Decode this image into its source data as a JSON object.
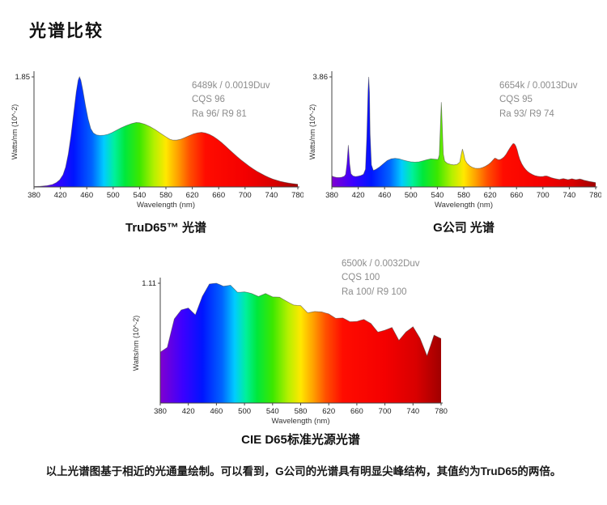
{
  "page": {
    "title": "光谱比较",
    "footnote": "以上光谱图基于相近的光通量绘制。可以看到，G公司的光谱具有明显尖峰结构，其值约为TruD65的两倍。"
  },
  "colors": {
    "annotation_text": "#8c8c8c",
    "axis": "#444444",
    "curve_outline": "#3c3c3c"
  },
  "spectrum_gradient_stops": [
    {
      "nm": 380,
      "color": "#8000d0"
    },
    {
      "nm": 412,
      "color": "#3c00ff"
    },
    {
      "nm": 440,
      "color": "#0014ff"
    },
    {
      "nm": 468,
      "color": "#0064ff"
    },
    {
      "nm": 486,
      "color": "#00ccff"
    },
    {
      "nm": 502,
      "color": "#00f09b"
    },
    {
      "nm": 518,
      "color": "#00e83c"
    },
    {
      "nm": 540,
      "color": "#3ce800"
    },
    {
      "nm": 562,
      "color": "#b4f000"
    },
    {
      "nm": 580,
      "color": "#ffe800"
    },
    {
      "nm": 598,
      "color": "#ffa000"
    },
    {
      "nm": 616,
      "color": "#ff5000"
    },
    {
      "nm": 640,
      "color": "#ff0c00"
    },
    {
      "nm": 700,
      "color": "#f40000"
    },
    {
      "nm": 745,
      "color": "#d80000"
    },
    {
      "nm": 780,
      "color": "#a00000"
    }
  ],
  "chart_data": [
    {
      "type": "area",
      "title": "TruD65™ 光谱",
      "xlabel": "Wavelength (nm)",
      "ylabel": "Watts/nm (10^-2)",
      "ymax_label": "1.85",
      "ymax_value": 1.85,
      "xlim": [
        380,
        780
      ],
      "xticks": [
        380,
        420,
        460,
        500,
        540,
        580,
        620,
        660,
        700,
        740,
        780
      ],
      "annotation": [
        "6489k / 0.0019Duv",
        "CQS 96",
        "Ra 96/ R9 81"
      ],
      "points": [
        [
          380,
          0.004
        ],
        [
          390,
          0.006
        ],
        [
          400,
          0.012
        ],
        [
          408,
          0.022
        ],
        [
          414,
          0.04
        ],
        [
          419,
          0.065
        ],
        [
          424,
          0.11
        ],
        [
          428,
          0.18
        ],
        [
          432,
          0.3
        ],
        [
          436,
          0.46
        ],
        [
          440,
          0.66
        ],
        [
          444,
          0.86
        ],
        [
          447,
          0.97
        ],
        [
          449,
          1.0
        ],
        [
          451,
          0.97
        ],
        [
          454,
          0.88
        ],
        [
          458,
          0.74
        ],
        [
          462,
          0.62
        ],
        [
          466,
          0.53
        ],
        [
          470,
          0.49
        ],
        [
          475,
          0.472
        ],
        [
          480,
          0.468
        ],
        [
          486,
          0.47
        ],
        [
          492,
          0.478
        ],
        [
          498,
          0.493
        ],
        [
          505,
          0.515
        ],
        [
          512,
          0.537
        ],
        [
          520,
          0.558
        ],
        [
          528,
          0.575
        ],
        [
          535,
          0.585
        ],
        [
          540,
          0.583
        ],
        [
          548,
          0.57
        ],
        [
          556,
          0.548
        ],
        [
          564,
          0.52
        ],
        [
          572,
          0.487
        ],
        [
          580,
          0.455
        ],
        [
          586,
          0.433
        ],
        [
          591,
          0.425
        ],
        [
          596,
          0.425
        ],
        [
          602,
          0.432
        ],
        [
          608,
          0.447
        ],
        [
          615,
          0.465
        ],
        [
          622,
          0.482
        ],
        [
          628,
          0.492
        ],
        [
          634,
          0.496
        ],
        [
          640,
          0.49
        ],
        [
          646,
          0.477
        ],
        [
          652,
          0.458
        ],
        [
          658,
          0.433
        ],
        [
          664,
          0.405
        ],
        [
          670,
          0.373
        ],
        [
          676,
          0.34
        ],
        [
          682,
          0.307
        ],
        [
          688,
          0.275
        ],
        [
          694,
          0.245
        ],
        [
          700,
          0.217
        ],
        [
          706,
          0.19
        ],
        [
          712,
          0.165
        ],
        [
          718,
          0.142
        ],
        [
          724,
          0.122
        ],
        [
          730,
          0.103
        ],
        [
          736,
          0.087
        ],
        [
          742,
          0.072
        ],
        [
          748,
          0.06
        ],
        [
          754,
          0.05
        ],
        [
          760,
          0.042
        ],
        [
          766,
          0.035
        ],
        [
          772,
          0.03
        ],
        [
          780,
          0.024
        ]
      ]
    },
    {
      "type": "area",
      "title": "G公司 光谱",
      "xlabel": "Wavelength (nm)",
      "ylabel": "Watts/nm (10^-2)",
      "ymax_label": "3.86",
      "ymax_value": 3.86,
      "xlim": [
        380,
        780
      ],
      "xticks": [
        380,
        420,
        460,
        500,
        540,
        580,
        620,
        660,
        700,
        740,
        780
      ],
      "annotation": [
        "6654k / 0.0013Duv",
        "CQS 95",
        "Ra 93/ R9 74"
      ],
      "points": [
        [
          380,
          0.1
        ],
        [
          383,
          0.092
        ],
        [
          387,
          0.086
        ],
        [
          391,
          0.085
        ],
        [
          395,
          0.088
        ],
        [
          399,
          0.098
        ],
        [
          401,
          0.115
        ],
        [
          403,
          0.21
        ],
        [
          405,
          0.38
        ],
        [
          407,
          0.21
        ],
        [
          409,
          0.12
        ],
        [
          412,
          0.1
        ],
        [
          416,
          0.094
        ],
        [
          420,
          0.098
        ],
        [
          424,
          0.104
        ],
        [
          428,
          0.115
        ],
        [
          431,
          0.16
        ],
        [
          433,
          0.45
        ],
        [
          435,
          0.88
        ],
        [
          436,
          1.0
        ],
        [
          437,
          0.86
        ],
        [
          438,
          0.48
        ],
        [
          440,
          0.2
        ],
        [
          443,
          0.15
        ],
        [
          447,
          0.16
        ],
        [
          452,
          0.18
        ],
        [
          458,
          0.21
        ],
        [
          464,
          0.24
        ],
        [
          470,
          0.255
        ],
        [
          476,
          0.26
        ],
        [
          482,
          0.255
        ],
        [
          488,
          0.245
        ],
        [
          494,
          0.235
        ],
        [
          500,
          0.228
        ],
        [
          506,
          0.225
        ],
        [
          512,
          0.228
        ],
        [
          518,
          0.237
        ],
        [
          524,
          0.247
        ],
        [
          530,
          0.255
        ],
        [
          536,
          0.252
        ],
        [
          541,
          0.25
        ],
        [
          543,
          0.29
        ],
        [
          545,
          0.62
        ],
        [
          546,
          0.77
        ],
        [
          547,
          0.62
        ],
        [
          549,
          0.3
        ],
        [
          551,
          0.235
        ],
        [
          555,
          0.215
        ],
        [
          560,
          0.205
        ],
        [
          565,
          0.2
        ],
        [
          570,
          0.205
        ],
        [
          574,
          0.225
        ],
        [
          576,
          0.29
        ],
        [
          578,
          0.345
        ],
        [
          580,
          0.3
        ],
        [
          582,
          0.245
        ],
        [
          585,
          0.215
        ],
        [
          589,
          0.193
        ],
        [
          593,
          0.178
        ],
        [
          597,
          0.17
        ],
        [
          601,
          0.168
        ],
        [
          605,
          0.17
        ],
        [
          609,
          0.177
        ],
        [
          613,
          0.188
        ],
        [
          617,
          0.203
        ],
        [
          621,
          0.222
        ],
        [
          624,
          0.243
        ],
        [
          627,
          0.262
        ],
        [
          629,
          0.258
        ],
        [
          632,
          0.247
        ],
        [
          635,
          0.248
        ],
        [
          638,
          0.258
        ],
        [
          641,
          0.272
        ],
        [
          644,
          0.295
        ],
        [
          647,
          0.325
        ],
        [
          650,
          0.355
        ],
        [
          653,
          0.38
        ],
        [
          655,
          0.395
        ],
        [
          657,
          0.39
        ],
        [
          659,
          0.37
        ],
        [
          661,
          0.335
        ],
        [
          663,
          0.29
        ],
        [
          665,
          0.25
        ],
        [
          668,
          0.21
        ],
        [
          671,
          0.18
        ],
        [
          674,
          0.158
        ],
        [
          677,
          0.14
        ],
        [
          680,
          0.127
        ],
        [
          684,
          0.113
        ],
        [
          688,
          0.103
        ],
        [
          692,
          0.097
        ],
        [
          696,
          0.094
        ],
        [
          700,
          0.095
        ],
        [
          703,
          0.099
        ],
        [
          706,
          0.099
        ],
        [
          709,
          0.093
        ],
        [
          713,
          0.084
        ],
        [
          717,
          0.077
        ],
        [
          721,
          0.072
        ],
        [
          725,
          0.068
        ],
        [
          728,
          0.072
        ],
        [
          731,
          0.076
        ],
        [
          734,
          0.071
        ],
        [
          738,
          0.066
        ],
        [
          741,
          0.07
        ],
        [
          744,
          0.074
        ],
        [
          747,
          0.07
        ],
        [
          750,
          0.066
        ],
        [
          753,
          0.069
        ],
        [
          756,
          0.072
        ],
        [
          759,
          0.068
        ],
        [
          762,
          0.062
        ],
        [
          766,
          0.056
        ],
        [
          770,
          0.051
        ],
        [
          774,
          0.046
        ],
        [
          780,
          0.04
        ]
      ]
    },
    {
      "type": "area",
      "title": "CIE D65标准光源光谱",
      "xlabel": "Wavelength (nm)",
      "ylabel": "Watts/nm (10^-2)",
      "ymax_label": "1.11",
      "ymax_value": 1.11,
      "xlim": [
        380,
        780
      ],
      "xticks": [
        380,
        420,
        460,
        500,
        540,
        580,
        620,
        660,
        700,
        740,
        780
      ],
      "annotation": [
        "6500k / 0.0032Duv",
        "CQS 100",
        "Ra 100/ R9 100"
      ],
      "points": [
        [
          380,
          0.424
        ],
        [
          385,
          0.444
        ],
        [
          390,
          0.464
        ],
        [
          395,
          0.583
        ],
        [
          400,
          0.702
        ],
        [
          405,
          0.74
        ],
        [
          410,
          0.777
        ],
        [
          415,
          0.785
        ],
        [
          420,
          0.793
        ],
        [
          425,
          0.764
        ],
        [
          430,
          0.736
        ],
        [
          435,
          0.813
        ],
        [
          440,
          0.89
        ],
        [
          445,
          0.942
        ],
        [
          450,
          0.993
        ],
        [
          455,
          0.997
        ],
        [
          460,
          1.0
        ],
        [
          465,
          0.988
        ],
        [
          470,
          0.975
        ],
        [
          475,
          0.979
        ],
        [
          480,
          0.984
        ],
        [
          485,
          0.954
        ],
        [
          490,
          0.924
        ],
        [
          495,
          0.926
        ],
        [
          500,
          0.928
        ],
        [
          505,
          0.922
        ],
        [
          510,
          0.915
        ],
        [
          515,
          0.902
        ],
        [
          520,
          0.889
        ],
        [
          525,
          0.902
        ],
        [
          530,
          0.914
        ],
        [
          535,
          0.9
        ],
        [
          540,
          0.886
        ],
        [
          545,
          0.885
        ],
        [
          550,
          0.883
        ],
        [
          555,
          0.866
        ],
        [
          560,
          0.849
        ],
        [
          565,
          0.833
        ],
        [
          570,
          0.818
        ],
        [
          575,
          0.815
        ],
        [
          580,
          0.813
        ],
        [
          585,
          0.783
        ],
        [
          590,
          0.753
        ],
        [
          595,
          0.758
        ],
        [
          600,
          0.764
        ],
        [
          605,
          0.762
        ],
        [
          610,
          0.761
        ],
        [
          615,
          0.752
        ],
        [
          620,
          0.744
        ],
        [
          625,
          0.726
        ],
        [
          630,
          0.707
        ],
        [
          635,
          0.709
        ],
        [
          640,
          0.71
        ],
        [
          645,
          0.695
        ],
        [
          650,
          0.679
        ],
        [
          655,
          0.68
        ],
        [
          660,
          0.681
        ],
        [
          665,
          0.69
        ],
        [
          670,
          0.698
        ],
        [
          675,
          0.681
        ],
        [
          680,
          0.664
        ],
        [
          685,
          0.628
        ],
        [
          690,
          0.592
        ],
        [
          695,
          0.6
        ],
        [
          700,
          0.608
        ],
        [
          705,
          0.619
        ],
        [
          710,
          0.631
        ],
        [
          715,
          0.577
        ],
        [
          720,
          0.523
        ],
        [
          725,
          0.558
        ],
        [
          730,
          0.593
        ],
        [
          735,
          0.615
        ],
        [
          740,
          0.637
        ],
        [
          745,
          0.589
        ],
        [
          750,
          0.54
        ],
        [
          755,
          0.467
        ],
        [
          760,
          0.394
        ],
        [
          765,
          0.48
        ],
        [
          770,
          0.567
        ],
        [
          775,
          0.552
        ],
        [
          780,
          0.538
        ]
      ]
    }
  ]
}
